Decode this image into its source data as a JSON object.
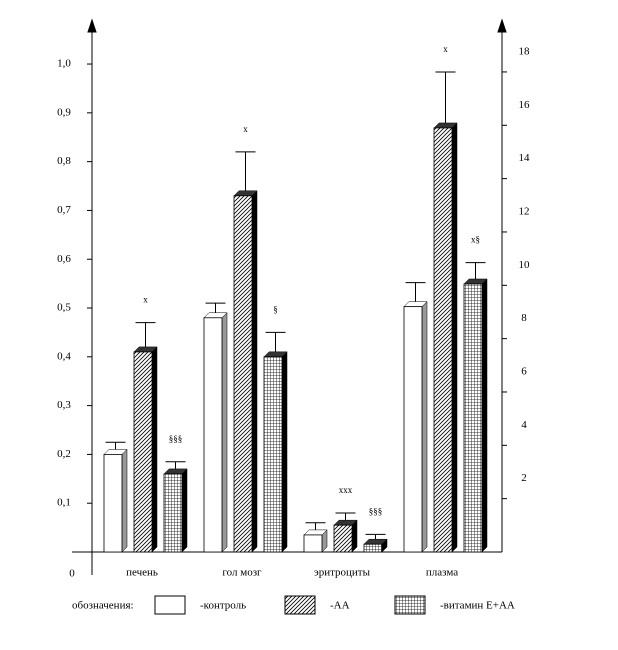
{
  "chart_data": {
    "type": "bar3d",
    "categories": [
      "печень",
      "гол мозг",
      "эритроциты",
      "плазма"
    ],
    "category_axis": [
      "y",
      "y",
      "y",
      "y2"
    ],
    "series": [
      {
        "name": "-контроль",
        "color": "#ffffff",
        "pattern": "none",
        "values": [
          0.2,
          0.48,
          0.035,
          9.2
        ],
        "errors": [
          0.025,
          0.03,
          0.025,
          0.9
        ],
        "markers": [
          null,
          null,
          null,
          null
        ]
      },
      {
        "name": "-АА",
        "color": "#ffffff",
        "pattern": "diagonal",
        "values": [
          0.41,
          0.73,
          0.055,
          15.9
        ],
        "errors": [
          0.06,
          0.09,
          0.025,
          2.1
        ],
        "markers": [
          "x",
          "x",
          "xxx",
          "x"
        ]
      },
      {
        "name": "-витамин Е+АА",
        "color": "#ffffff",
        "pattern": "grid",
        "values": [
          0.16,
          0.4,
          0.016,
          10.05
        ],
        "errors": [
          0.025,
          0.05,
          0.02,
          0.8
        ],
        "markers": [
          "§§§",
          "§",
          "§§§",
          "x§"
        ]
      }
    ],
    "legend_title": "обозначения:",
    "ylim": [
      0,
      1.08
    ],
    "yticks": [
      0,
      {
        "value": 0.1,
        "label": "0,1"
      },
      {
        "value": 0.2,
        "label": "0,2"
      },
      {
        "value": 0.3,
        "label": "0,3"
      },
      {
        "value": 0.4,
        "label": "0,4"
      },
      {
        "value": 0.5,
        "label": "0,5"
      },
      {
        "value": 0.6,
        "label": "0,6"
      },
      {
        "value": 0.7,
        "label": "0,7"
      },
      {
        "value": 0.8,
        "label": "0,8"
      },
      {
        "value": 0.9,
        "label": "0,9"
      },
      {
        "value": 1.0,
        "label": "1,0"
      }
    ],
    "y2lim": [
      0,
      19.76
    ],
    "y2ticks": [
      2,
      4,
      6,
      8,
      10,
      12,
      14,
      16,
      18
    ]
  }
}
